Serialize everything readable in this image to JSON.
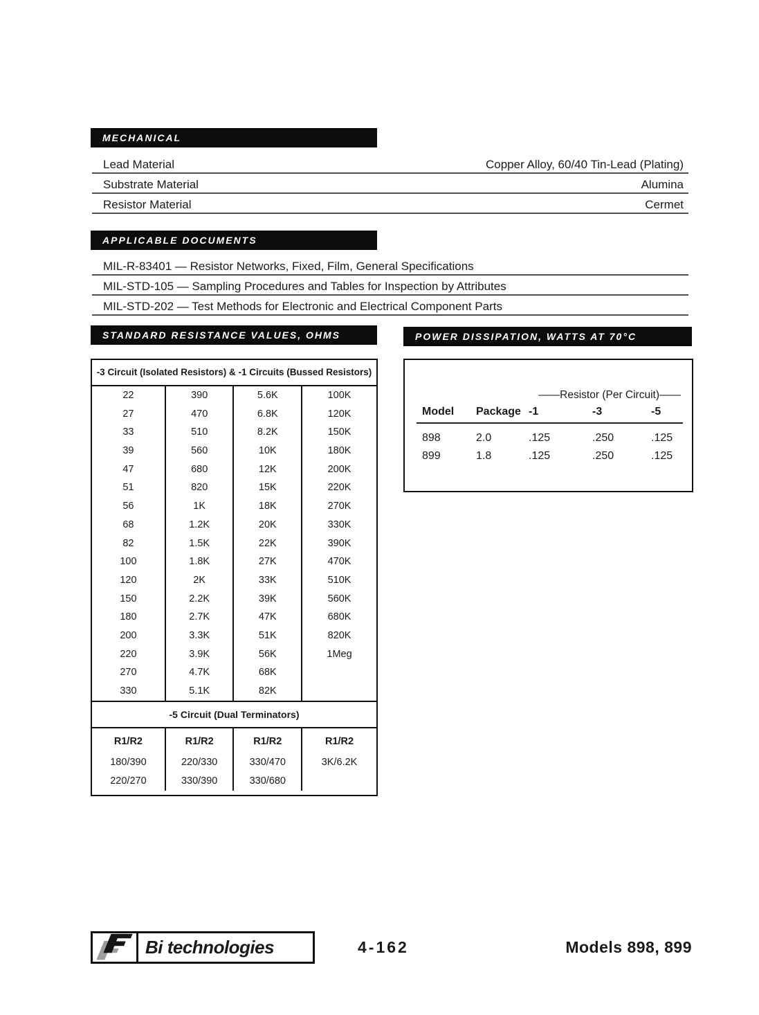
{
  "sections": {
    "mechanical": {
      "title": "MECHANICAL",
      "rows": [
        {
          "label": "Lead Material",
          "value": "Copper Alloy, 60/40 Tin-Lead (Plating)"
        },
        {
          "label": "Substrate Material",
          "value": "Alumina"
        },
        {
          "label": "Resistor Material",
          "value": "Cermet"
        }
      ]
    },
    "applicable_documents": {
      "title": "APPLICABLE DOCUMENTS",
      "items": [
        "MIL-R-83401 — Resistor Networks, Fixed, Film, General Specifications",
        "MIL-STD-105 — Sampling Procedures and Tables for Inspection by Attributes",
        "MIL-STD-202 — Test Methods for Electronic and Electrical Component Parts"
      ]
    },
    "standard_resistance": {
      "title": "STANDARD RESISTANCE VALUES, OHMS",
      "subtitle": "-3 Circuit (Isolated Resistors) & -1 Circuits (Bussed Resistors)",
      "columns": [
        [
          "22",
          "27",
          "33",
          "39",
          "47",
          "51",
          "56",
          "68",
          "82",
          "100",
          "120",
          "150",
          "180",
          "200",
          "220",
          "270",
          "330"
        ],
        [
          "390",
          "470",
          "510",
          "560",
          "680",
          "820",
          "1K",
          "1.2K",
          "1.5K",
          "1.8K",
          "2K",
          "2.2K",
          "2.7K",
          "3.3K",
          "3.9K",
          "4.7K",
          "5.1K"
        ],
        [
          "5.6K",
          "6.8K",
          "8.2K",
          "10K",
          "12K",
          "15K",
          "18K",
          "20K",
          "22K",
          "27K",
          "33K",
          "39K",
          "47K",
          "51K",
          "56K",
          "68K",
          "82K"
        ],
        [
          "100K",
          "120K",
          "150K",
          "180K",
          "200K",
          "220K",
          "270K",
          "330K",
          "390K",
          "470K",
          "510K",
          "560K",
          "680K",
          "820K",
          "1Meg",
          "",
          ""
        ]
      ],
      "dual_title": "-5 Circuit (Dual Terminators)",
      "dual_header": [
        "R1/R2",
        "R1/R2",
        "R1/R2",
        "R1/R2"
      ],
      "dual_rows": [
        [
          "180/390",
          "220/330",
          "330/470",
          "3K/6.2K"
        ],
        [
          "220/270",
          "330/390",
          "330/680",
          ""
        ]
      ]
    },
    "power_dissipation": {
      "title": "POWER DISSIPATION, WATTS AT 70°C",
      "span_header": "——Resistor (Per Circuit)——",
      "headers": [
        "Model",
        "Package",
        "-1",
        "-3",
        "-5"
      ],
      "rows": [
        [
          "898",
          "2.0",
          ".125",
          ".250",
          ".125"
        ],
        [
          "899",
          "1.8",
          ".125",
          ".250",
          ".125"
        ]
      ]
    }
  },
  "footer": {
    "logo_text": "Bi technologies",
    "page_number": "4-162",
    "models": "Models 898, 899"
  },
  "colors": {
    "bar_background": "#0c0c0c",
    "bar_text": "#ffffff",
    "ink": "#1a1a1a",
    "logo_gray": "#9d9d9d"
  }
}
